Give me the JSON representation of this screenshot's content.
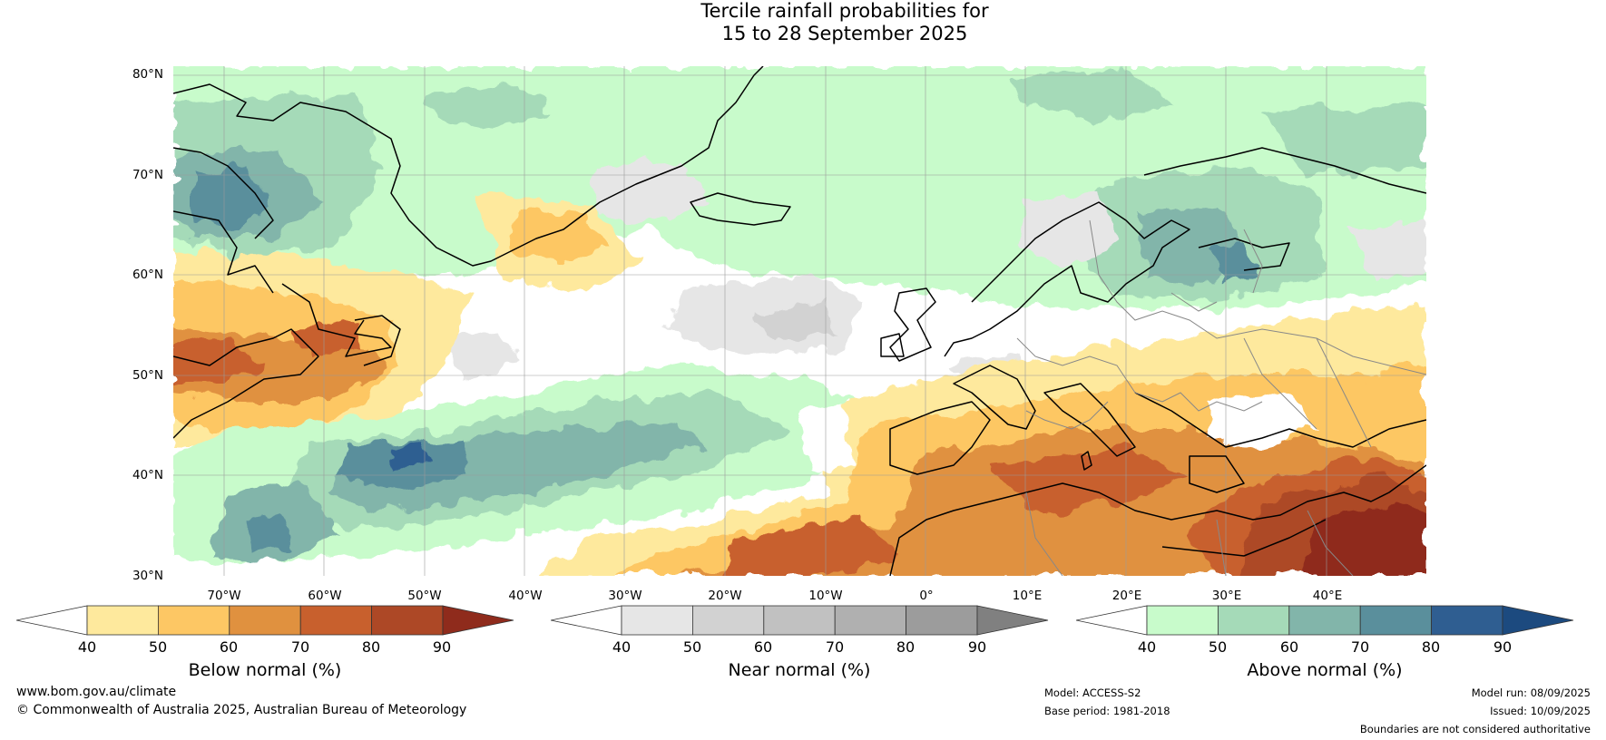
{
  "title": {
    "line1": "Tercile rainfall probabilities for",
    "line2": "15 to 28 September 2025"
  },
  "map": {
    "lat_labels": [
      "80°N",
      "70°N",
      "60°N",
      "50°N",
      "40°N",
      "30°N"
    ],
    "lon_labels": [
      "70°W",
      "60°W",
      "50°W",
      "40°W",
      "30°W",
      "20°W",
      "10°W",
      "0°",
      "10°E",
      "20°E",
      "30°E",
      "40°E"
    ],
    "extent": {
      "lon": [
        -80,
        45
      ],
      "lat": [
        30,
        81
      ]
    },
    "coastline_color": "#000000",
    "border_color": "#888888"
  },
  "legends": [
    {
      "label": "Below normal (%)",
      "ticks": [
        "40",
        "50",
        "60",
        "70",
        "80",
        "90"
      ],
      "colors": [
        "#ffffff",
        "#fee99d",
        "#fdc764",
        "#e0913f",
        "#c8602d",
        "#ad4826",
        "#8f2b1c"
      ]
    },
    {
      "label": "Near normal (%)",
      "ticks": [
        "40",
        "50",
        "60",
        "70",
        "80",
        "90"
      ],
      "colors": [
        "#ffffff",
        "#e6e6e6",
        "#d2d2d2",
        "#c1c1c1",
        "#b0b0b0",
        "#9c9c9c",
        "#808080"
      ]
    },
    {
      "label": "Above normal (%)",
      "ticks": [
        "40",
        "50",
        "60",
        "70",
        "80",
        "90"
      ],
      "colors": [
        "#ffffff",
        "#c8fbcb",
        "#a5dab8",
        "#82b5aa",
        "#5a8f9c",
        "#2f5e91",
        "#1c4a7f"
      ]
    }
  ],
  "footer": {
    "site": "www.bom.gov.au/climate",
    "copyright": "© Commonwealth of Australia 2025, Australian Bureau of Meteorology",
    "model": "Model: ACCESS-S2",
    "base_period": "Base period: 1981-2018",
    "model_run": "Model run: 08/09/2025",
    "issued": "Issued: 10/09/2025",
    "disclaimer": "Boundaries are not considered authoritative"
  }
}
